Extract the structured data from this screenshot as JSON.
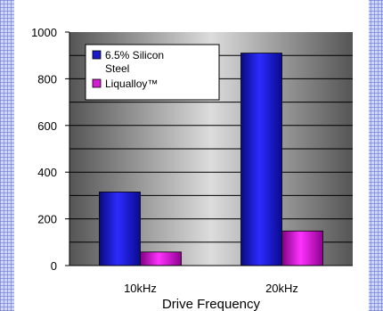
{
  "chart_data": {
    "type": "bar",
    "title": "",
    "xlabel": "Drive Frequency",
    "ylabel": "",
    "categories": [
      "10kHz",
      "20kHz"
    ],
    "ylim": [
      0,
      1000
    ],
    "yticks": [
      0,
      200,
      400,
      600,
      800,
      1000
    ],
    "grid": true,
    "legend_position": "top-left",
    "series": [
      {
        "name": "6.5% Silicon Steel",
        "legend_lines": [
          "6.5% Silicon",
          "Steel"
        ],
        "color": "#1a1ac8",
        "values": [
          315,
          910
        ]
      },
      {
        "name": "Liqualloy™",
        "legend_lines": [
          "Liqualloy™"
        ],
        "color": "#d41ad4",
        "values": [
          58,
          148
        ]
      }
    ]
  }
}
